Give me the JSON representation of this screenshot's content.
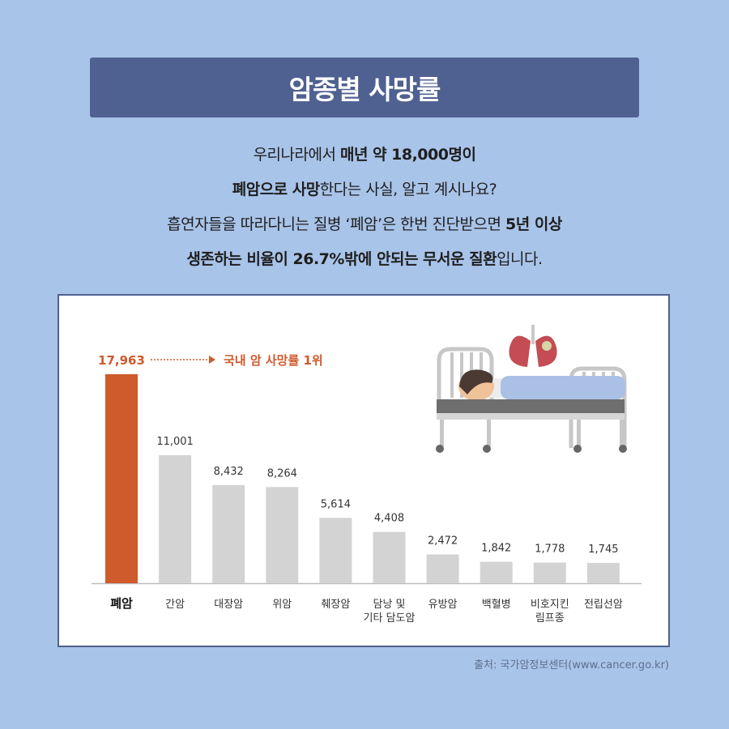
{
  "title": "암종별 사망률",
  "intro": {
    "lines": [
      [
        {
          "t": "우리나라에서 ",
          "b": false
        },
        {
          "t": "매년 약 18,000명이",
          "b": true
        }
      ],
      [
        {
          "t": "폐암으로 사망",
          "b": true
        },
        {
          "t": "한다는 사실, 알고 계시나요?",
          "b": false
        }
      ],
      [
        {
          "t": "흡연자들을 따라다니는 질병 ‘폐암’은 한번 진단받으면 ",
          "b": false
        },
        {
          "t": "5년 이상",
          "b": true
        }
      ],
      [
        {
          "t": "생존하는 비율이 26.7%밖에 안되는 무서운 질환",
          "b": true
        },
        {
          "t": "입니다.",
          "b": false
        }
      ]
    ]
  },
  "chart_data": {
    "type": "bar",
    "categories": [
      "폐암",
      "간암",
      "대장암",
      "위암",
      "췌장암",
      "담낭 및\n기타 담도암",
      "유방암",
      "백혈병",
      "비호지킨\n림프종",
      "전립선암"
    ],
    "values": [
      17963,
      11001,
      8432,
      8264,
      5614,
      4408,
      2472,
      1842,
      1778,
      1745
    ],
    "value_labels": [
      "17,963",
      "11,001",
      "8,432",
      "8,264",
      "5,614",
      "4,408",
      "2,472",
      "1,842",
      "1,778",
      "1,745"
    ],
    "highlight_index": 0,
    "highlight_note": "국내 암 사망률 1위",
    "ylim": [
      0,
      17963
    ],
    "colors": {
      "highlight": "#cf5a2c",
      "bar": "#d3d3d3",
      "text": "#333333",
      "axis": "#bdbdbd"
    }
  },
  "source": "출처: 국가암정보센터(www.cancer.go.kr)"
}
